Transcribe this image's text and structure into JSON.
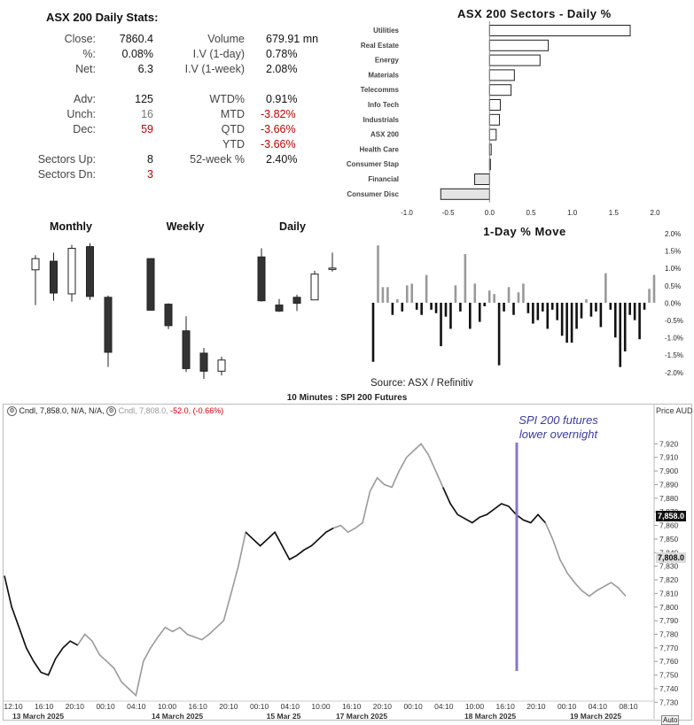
{
  "stats": {
    "title": "ASX 200 Daily Stats:",
    "left": [
      {
        "label": "Close:",
        "value": "7860.4"
      },
      {
        "label": "%:",
        "value": "0.08%"
      },
      {
        "label": "Net:",
        "value": "6.3"
      },
      {
        "label": "Adv:",
        "value": "125"
      },
      {
        "label": "Unch:",
        "value": "16"
      },
      {
        "label": "Dec:",
        "value": "59"
      },
      {
        "label": "Sectors Up:",
        "value": "8"
      },
      {
        "label": "Sectors Dn:",
        "value": "3"
      }
    ],
    "right": [
      {
        "label": "Volume",
        "value": "679.91 mn"
      },
      {
        "label": "I.V (1-day)",
        "value": "0.78%"
      },
      {
        "label": "I.V (1-week)",
        "value": "2.08%"
      },
      {
        "label": "WTD%",
        "value": "0.91%"
      },
      {
        "label": "MTD",
        "value": "-3.82%"
      },
      {
        "label": "QTD",
        "value": "-3.66%"
      },
      {
        "label": "YTD",
        "value": "-3.66%"
      },
      {
        "label": "52-week %",
        "value": "2.40%"
      }
    ]
  },
  "chart_data": [
    {
      "type": "bar",
      "orientation": "horizontal",
      "title": "ASX 200 Sectors - Daily %",
      "categories": [
        "Utilities",
        "Real Estate",
        "Energy",
        "Materials",
        "Telecomms",
        "Info Tech",
        "Industrials",
        "ASX 200",
        "Health Care",
        "Consumer Stap",
        "Financial",
        "Consumer Disc"
      ],
      "values": [
        1.7,
        0.71,
        0.61,
        0.3,
        0.26,
        0.13,
        0.12,
        0.08,
        0.02,
        0.01,
        -0.18,
        -0.59
      ],
      "xlim": [
        -1.0,
        2.0
      ],
      "xticks": [
        "-1.0",
        "-0.5",
        "0.0",
        "0.5",
        "1.0",
        "1.5",
        "2.0"
      ]
    },
    {
      "type": "candlestick",
      "panels": [
        {
          "title": "Monthly",
          "candles": [
            {
              "o": 7.9,
              "h": 9.6,
              "l": 3.8,
              "c": 9.2
            },
            {
              "o": 8.9,
              "h": 9.9,
              "l": 4.3,
              "c": 5.2
            },
            {
              "o": 5.1,
              "h": 10.8,
              "l": 4.2,
              "c": 10.4
            },
            {
              "o": 10.6,
              "h": 11.0,
              "l": 4.4,
              "c": 4.8
            },
            {
              "o": 4.7,
              "h": 4.9,
              "l": -3.4,
              "c": -1.7
            }
          ]
        },
        {
          "title": "Weekly",
          "candles": [
            {
              "o": 9.2,
              "h": 9.2,
              "l": 3.2,
              "c": 3.2
            },
            {
              "o": 3.9,
              "h": 4.0,
              "l": 1.0,
              "c": 1.4
            },
            {
              "o": 0.8,
              "h": 2.5,
              "l": -4.0,
              "c": -3.6
            },
            {
              "o": -1.8,
              "h": -1.2,
              "l": -4.8,
              "c": -3.9
            },
            {
              "o": -3.9,
              "h": -2.2,
              "l": -4.4,
              "c": -2.6
            }
          ]
        },
        {
          "title": "Daily",
          "candles": [
            {
              "o": 9.4,
              "h": 10.4,
              "l": 4.2,
              "c": 4.3
            },
            {
              "o": 3.8,
              "h": 4.5,
              "l": 3.0,
              "c": 3.1
            },
            {
              "o": 4.7,
              "h": 5.0,
              "l": 3.1,
              "c": 4.0
            },
            {
              "o": 4.4,
              "h": 7.8,
              "l": 4.4,
              "c": 7.4
            },
            {
              "o": 8.0,
              "h": 9.9,
              "l": 7.7,
              "c": 8.1
            }
          ]
        }
      ]
    },
    {
      "type": "bar",
      "title": "1-Day % Move",
      "yticks": [
        "2.0%",
        "1.5%",
        "1.0%",
        "0.5%",
        "0.0%",
        "-0.5%",
        "-1.0%",
        "-1.5%",
        "-2.0%"
      ],
      "ylim": [
        -2.0,
        2.0
      ],
      "values": [
        -1.7,
        1.65,
        0.45,
        0.45,
        -0.35,
        0.1,
        -0.25,
        0.5,
        0.55,
        -0.2,
        -0.35,
        0.8,
        -0.2,
        -0.3,
        -1.25,
        -0.4,
        -0.75,
        0.5,
        -0.25,
        1.4,
        -0.75,
        0.55,
        -0.55,
        -0.1,
        0.35,
        0.25,
        -1.8,
        -0.25,
        0.45,
        -0.35,
        0.3,
        0.55,
        -0.3,
        -0.6,
        -0.5,
        -0.25,
        -0.75,
        -0.2,
        -0.5,
        -0.95,
        -1.15,
        -1.15,
        -0.75,
        -0.45,
        0.1,
        -0.4,
        -0.25,
        -0.7,
        0.85,
        -0.2,
        -1.0,
        -1.85,
        -1.4,
        -0.35,
        -0.5,
        -1.05,
        -0.2,
        0.4,
        0.8
      ]
    },
    {
      "type": "line",
      "title": "10 Minutes : SPI 200 Futures",
      "legend": {
        "series1": "Cndl, 7,858.0, N/A, N/A,",
        "series2": "Cndl, 7,808.0, -52.0, (-0.66%)",
        "series2_value": "7,808.0,",
        "series2_change": "-52.0, (-0.66%)"
      },
      "ylabel": "Price AUD",
      "ylim": [
        7725,
        7930
      ],
      "yticks": [
        "7,920",
        "7,910",
        "7,900",
        "7,890",
        "7,880",
        "7,870",
        "7,860",
        "7,850",
        "7,840",
        "7,830",
        "7,820",
        "7,810",
        "7,800",
        "7,790",
        "7,780",
        "7,770",
        "7,760",
        "7,750",
        "7,740",
        "7,730"
      ],
      "xticks": [
        "12:10",
        "16:10",
        "20:10",
        "00:10",
        "04:10",
        "10:00",
        "16:10",
        "20:10",
        "00:10",
        "04:10",
        "10:00",
        "16:10",
        "20:10",
        "00:10",
        "04:10",
        "10:00",
        "16:10",
        "20:10",
        "00:10",
        "04:10",
        "08:10"
      ],
      "xdates": [
        "13 March 2025",
        "14 March 2025",
        "15 Mar 25",
        "17 March 2025",
        "18 March 2025",
        "19 March 2025"
      ],
      "last_price_box": "7,858.0",
      "prev_price_box": "7,808.0",
      "annotation": "SPI 200 futures lower overnight",
      "series": [
        {
          "name": "SPI 200 Futures",
          "values": [
            7823,
            7800,
            7785,
            7770,
            7760,
            7752,
            7750,
            7762,
            7770,
            7775,
            7772,
            7780,
            7775,
            7765,
            7760,
            7755,
            7745,
            7740,
            7735,
            7760,
            7770,
            7778,
            7785,
            7782,
            7785,
            7780,
            7778,
            7776,
            7780,
            7785,
            7790,
            7810,
            7830,
            7855,
            7850,
            7845,
            7850,
            7855,
            7845,
            7835,
            7838,
            7842,
            7845,
            7850,
            7855,
            7858,
            7860,
            7855,
            7858,
            7862,
            7885,
            7895,
            7890,
            7888,
            7900,
            7910,
            7915,
            7920,
            7912,
            7900,
            7888,
            7876,
            7868,
            7865,
            7862,
            7866,
            7868,
            7872,
            7876,
            7874,
            7868,
            7864,
            7862,
            7868,
            7862,
            7850,
            7835,
            7825,
            7818,
            7812,
            7808,
            7812,
            7815,
            7818,
            7814,
            7808
          ]
        }
      ]
    }
  ],
  "source": "Source: ASX / Refinitiv",
  "auto_label": "Auto",
  "colors": {
    "negative": "#c00000",
    "annotation": "#3b3b9b",
    "vline": "#8878c8",
    "black_bar": "#111111",
    "grey_bar": "#999999"
  }
}
